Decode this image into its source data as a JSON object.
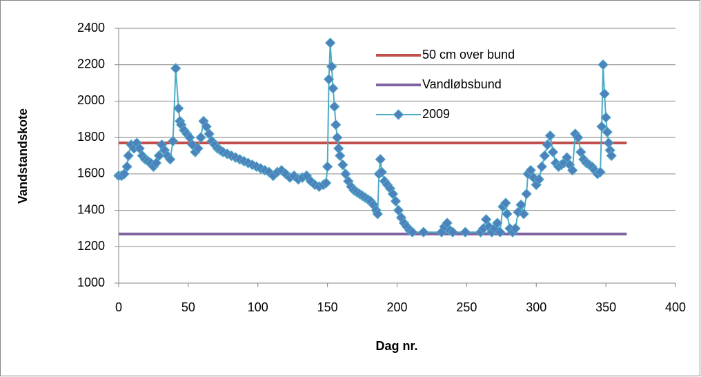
{
  "chart_data": {
    "type": "line",
    "x_label": "Dag nr.",
    "y_label": "Vandstandskote",
    "xlim": [
      0,
      400
    ],
    "xticks": [
      0,
      50,
      100,
      150,
      200,
      250,
      300,
      350,
      400
    ],
    "ylim": [
      1000,
      2400
    ],
    "yticks": [
      1000,
      1200,
      1400,
      1600,
      1800,
      2000,
      2200,
      2400
    ],
    "grid": true,
    "legend": "upper right",
    "series": [
      {
        "name": "50 cm over bund",
        "color": "#c0504d",
        "x": [
          0,
          365
        ],
        "values": [
          1770,
          1770
        ]
      },
      {
        "name": "Vandløbsbund",
        "color": "#8064a2",
        "x": [
          0,
          365
        ],
        "values": [
          1270,
          1270
        ]
      },
      {
        "name": "2009",
        "color": "#4bacc6",
        "marker": "diamond",
        "marker_color": "#4f81bd",
        "x": [
          0,
          2,
          4,
          6,
          7,
          9,
          11,
          13,
          15,
          17,
          19,
          21,
          23,
          25,
          27,
          29,
          31,
          33,
          35,
          37,
          39,
          41,
          43,
          44,
          45,
          47,
          49,
          51,
          53,
          55,
          57,
          59,
          61,
          63,
          65,
          67,
          69,
          71,
          73,
          75,
          78,
          81,
          84,
          87,
          90,
          93,
          96,
          99,
          102,
          105,
          108,
          111,
          114,
          117,
          120,
          123,
          126,
          129,
          132,
          135,
          138,
          141,
          144,
          147,
          149,
          150,
          151,
          152,
          153,
          154,
          155,
          156,
          157,
          158,
          159,
          161,
          163,
          165,
          167,
          169,
          171,
          173,
          175,
          177,
          179,
          181,
          183,
          185,
          186,
          187,
          188,
          189,
          191,
          193,
          195,
          197,
          199,
          201,
          203,
          205,
          207,
          209,
          211,
          219,
          232,
          234,
          236,
          238,
          240,
          249,
          260,
          262,
          264,
          266,
          268,
          270,
          272,
          274,
          276,
          278,
          279,
          281,
          283,
          285,
          287,
          289,
          291,
          293,
          294,
          296,
          298,
          300,
          302,
          304,
          306,
          308,
          310,
          312,
          314,
          316,
          318,
          320,
          322,
          324,
          326,
          328,
          330,
          332,
          334,
          336,
          338,
          340,
          342,
          344,
          346,
          347,
          348,
          349,
          350,
          351,
          352,
          353,
          354
        ],
        "values": [
          1590,
          1590,
          1600,
          1640,
          1700,
          1760,
          1740,
          1770,
          1740,
          1700,
          1680,
          1670,
          1660,
          1640,
          1660,
          1700,
          1760,
          1730,
          1700,
          1680,
          1780,
          2180,
          1960,
          1890,
          1870,
          1840,
          1820,
          1800,
          1760,
          1720,
          1740,
          1800,
          1890,
          1860,
          1820,
          1780,
          1760,
          1740,
          1730,
          1720,
          1710,
          1700,
          1690,
          1680,
          1670,
          1660,
          1650,
          1640,
          1630,
          1620,
          1610,
          1590,
          1610,
          1620,
          1600,
          1580,
          1590,
          1570,
          1580,
          1590,
          1560,
          1540,
          1530,
          1540,
          1550,
          1640,
          2120,
          2320,
          2190,
          2070,
          1970,
          1870,
          1800,
          1740,
          1700,
          1650,
          1600,
          1560,
          1530,
          1510,
          1500,
          1490,
          1480,
          1470,
          1460,
          1450,
          1430,
          1400,
          1380,
          1600,
          1680,
          1610,
          1560,
          1540,
          1520,
          1490,
          1450,
          1400,
          1360,
          1330,
          1310,
          1290,
          1280,
          1280,
          1280,
          1310,
          1330,
          1290,
          1280,
          1280,
          1280,
          1300,
          1350,
          1310,
          1280,
          1300,
          1330,
          1280,
          1420,
          1440,
          1380,
          1300,
          1280,
          1300,
          1390,
          1430,
          1380,
          1490,
          1600,
          1620,
          1580,
          1540,
          1570,
          1640,
          1700,
          1760,
          1810,
          1720,
          1660,
          1640,
          1650,
          1660,
          1690,
          1650,
          1620,
          1820,
          1800,
          1720,
          1680,
          1660,
          1650,
          1640,
          1620,
          1600,
          1610,
          1860,
          2200,
          2040,
          1910,
          1830,
          1770,
          1730,
          1700
        ]
      }
    ]
  }
}
